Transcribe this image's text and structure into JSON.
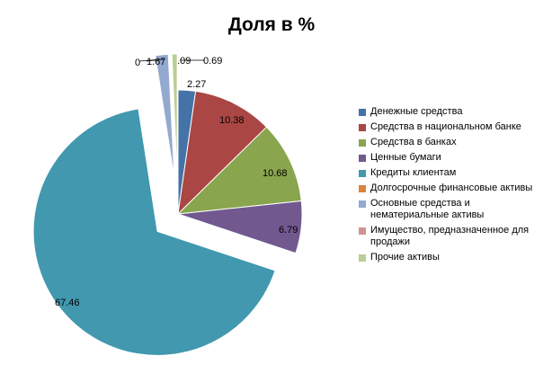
{
  "chart_data": {
    "type": "pie",
    "title": "Доля в %",
    "categories": [
      "Денежные средства",
      "Средства в национальном банке",
      "Средства в банках",
      "Ценные бумаги",
      "Кредиты клиентам",
      "Долгосрочные финансовые активы",
      "Основные средства и нематериальные активы",
      "Имущество, предназначенное для продажи",
      "Прочие активы"
    ],
    "values": [
      2.27,
      10.38,
      10.68,
      6.79,
      67.46,
      0,
      1.67,
      0.09,
      0.69
    ],
    "value_labels": [
      "2.27",
      "10.38",
      "10.68",
      "6.79",
      "67.46",
      "0",
      "1.67",
      "0.09",
      "0.69"
    ],
    "colors": [
      "#4572A7",
      "#AA4643",
      "#89A54E",
      "#71588F",
      "#4198AF",
      "#DB843D",
      "#93A9CF",
      "#D19392",
      "#B9CD96"
    ],
    "legend_position": "right"
  }
}
